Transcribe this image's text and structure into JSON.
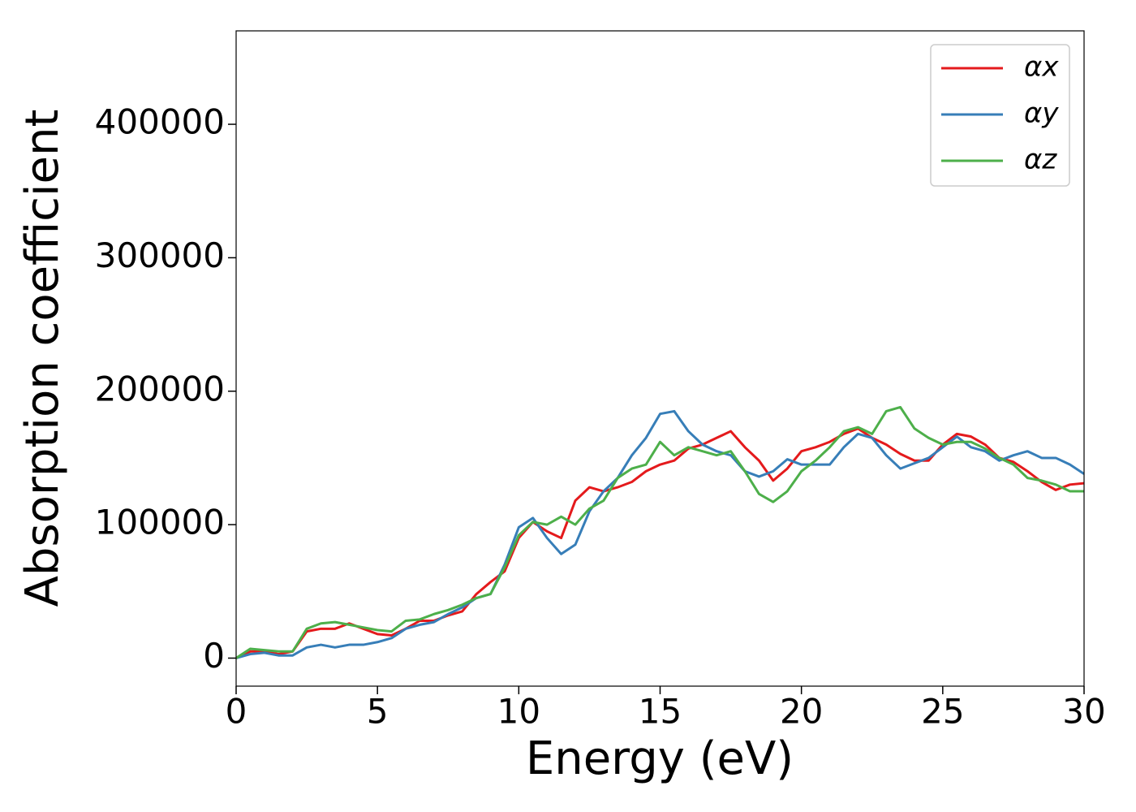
{
  "chart_data": {
    "type": "line",
    "xlabel": "Energy (eV)",
    "ylabel": "Absorption coefficient",
    "x": [
      0,
      0.5,
      1,
      1.5,
      2,
      2.5,
      3,
      3.5,
      4,
      4.5,
      5,
      5.5,
      6,
      6.5,
      7,
      7.5,
      8,
      8.5,
      9,
      9.5,
      10,
      10.5,
      11,
      11.5,
      12,
      12.5,
      13,
      13.5,
      14,
      14.5,
      15,
      15.5,
      16,
      16.5,
      17,
      17.5,
      18,
      18.5,
      19,
      19.5,
      20,
      20.5,
      21,
      21.5,
      22,
      22.5,
      23,
      23.5,
      24,
      24.5,
      25,
      25.5,
      26,
      26.5,
      27,
      27.5,
      28,
      28.5,
      29,
      29.5,
      30
    ],
    "series": [
      {
        "name": "αx",
        "color": "#e41a1c",
        "values": [
          0,
          5000,
          5000,
          3000,
          5000,
          20000,
          22000,
          22000,
          26000,
          22000,
          18000,
          17000,
          22000,
          28000,
          28000,
          32000,
          35000,
          48000,
          57000,
          65000,
          90000,
          102000,
          95000,
          90000,
          118000,
          128000,
          125000,
          128000,
          132000,
          140000,
          145000,
          148000,
          157000,
          160000,
          165000,
          170000,
          158000,
          148000,
          133000,
          142000,
          155000,
          158000,
          162000,
          168000,
          172000,
          165000,
          160000,
          153000,
          148000,
          148000,
          160000,
          168000,
          166000,
          160000,
          150000,
          147000,
          140000,
          132000,
          126000,
          130000,
          131000
        ]
      },
      {
        "name": "αy",
        "color": "#377eb8",
        "values": [
          0,
          3000,
          4000,
          2000,
          2000,
          8000,
          10000,
          8000,
          10000,
          10000,
          12000,
          15000,
          22000,
          25000,
          27000,
          33000,
          38000,
          45000,
          48000,
          70000,
          98000,
          105000,
          90000,
          78000,
          85000,
          110000,
          125000,
          135000,
          152000,
          165000,
          183000,
          185000,
          170000,
          160000,
          155000,
          152000,
          140000,
          136000,
          140000,
          149000,
          145000,
          145000,
          145000,
          158000,
          168000,
          165000,
          152000,
          142000,
          146000,
          150000,
          158000,
          166000,
          158000,
          155000,
          148000,
          152000,
          155000,
          150000,
          150000,
          145000,
          138000
        ]
      },
      {
        "name": "αz",
        "color": "#4daf4a",
        "values": [
          0,
          7000,
          6000,
          5000,
          5000,
          22000,
          26000,
          27000,
          25000,
          23000,
          21000,
          20000,
          28000,
          29000,
          33000,
          36000,
          40000,
          45000,
          48000,
          68000,
          92000,
          102000,
          100000,
          106000,
          100000,
          112000,
          118000,
          135000,
          142000,
          145000,
          162000,
          152000,
          158000,
          155000,
          152000,
          155000,
          140000,
          123000,
          117000,
          125000,
          140000,
          148000,
          158000,
          170000,
          173000,
          168000,
          185000,
          188000,
          172000,
          165000,
          160000,
          162000,
          162000,
          157000,
          150000,
          145000,
          135000,
          133000,
          130000,
          125000,
          125000
        ]
      }
    ],
    "xlim": [
      0,
      30
    ],
    "ylim": [
      -21000,
      470000
    ],
    "xticks": [
      0,
      5,
      10,
      15,
      20,
      25,
      30
    ],
    "yticks": [
      0,
      100000,
      200000,
      300000,
      400000
    ],
    "legend": "upper right"
  }
}
